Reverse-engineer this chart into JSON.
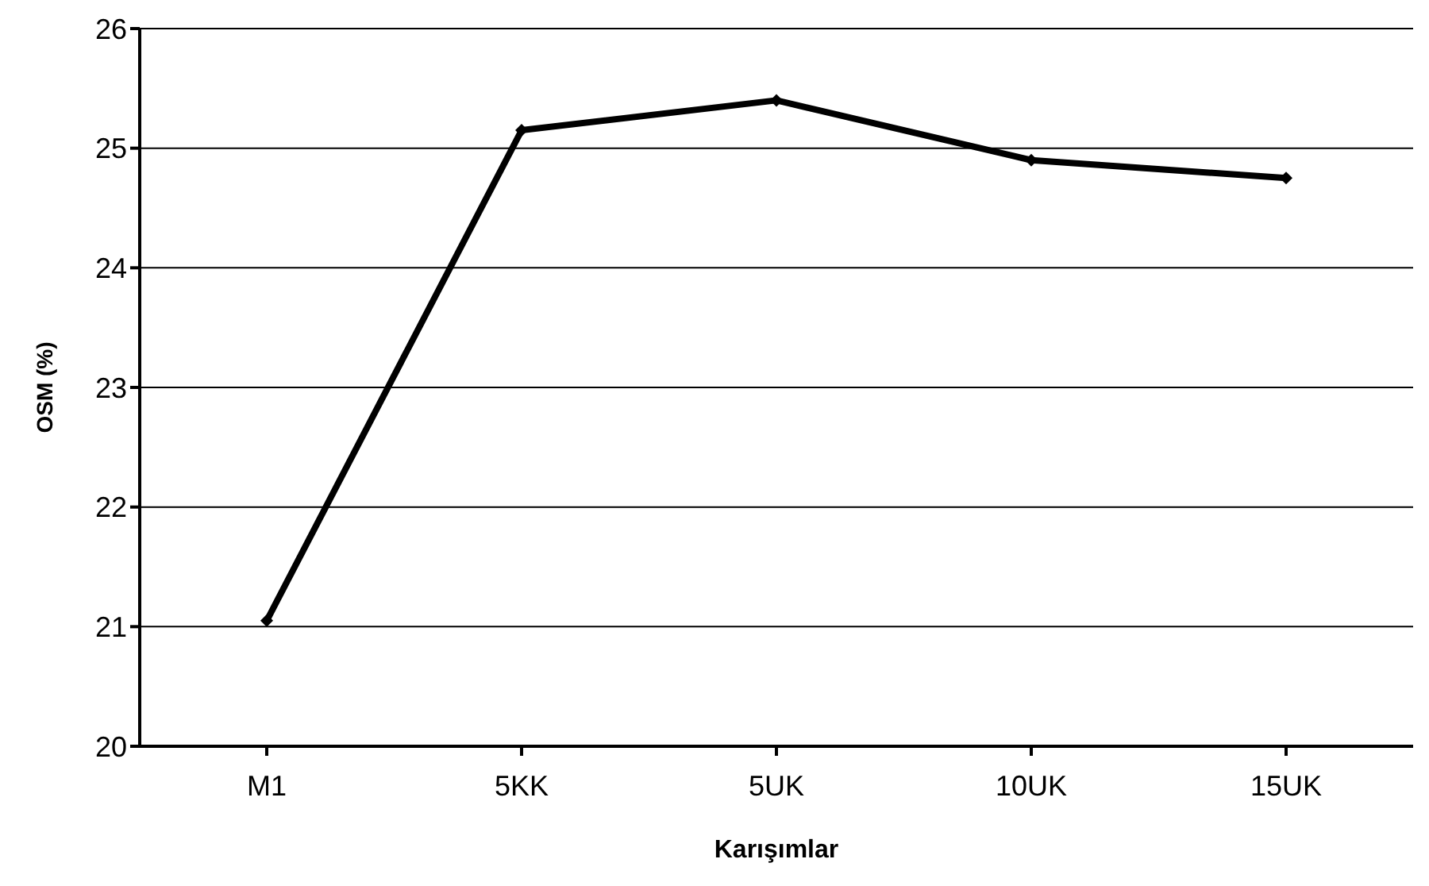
{
  "chart_data": {
    "type": "line",
    "xlabel": "Karışımlar",
    "ylabel": "OSM (%)",
    "categories": [
      "M1",
      "5KK",
      "5UK",
      "10UK",
      "15UK"
    ],
    "series": [
      {
        "color": "#000000",
        "values": [
          21.05,
          25.15,
          25.4,
          24.9,
          24.75
        ]
      }
    ],
    "ylim": [
      20,
      26
    ],
    "yticks": [
      20,
      21,
      22,
      23,
      24,
      25,
      26
    ],
    "grid": "y",
    "marker": "diamond",
    "line_style": "solid"
  }
}
